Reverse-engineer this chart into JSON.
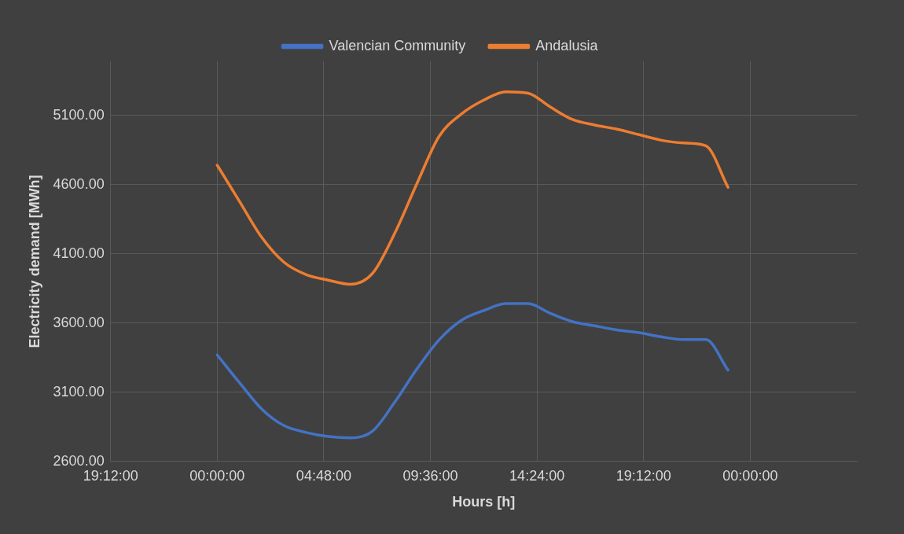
{
  "chart_data": {
    "type": "line",
    "xlabel": "Hours [h]",
    "ylabel": "Electricity demand [MWh]",
    "x": [
      "2000-01-01T00:00",
      "2000-01-01T01:00",
      "2000-01-01T02:00",
      "2000-01-01T03:00",
      "2000-01-01T04:00",
      "2000-01-01T05:00",
      "2000-01-01T06:00",
      "2000-01-01T07:00",
      "2000-01-01T08:00",
      "2000-01-01T09:00",
      "2000-01-01T10:00",
      "2000-01-01T11:00",
      "2000-01-01T12:00",
      "2000-01-01T13:00",
      "2000-01-01T14:00",
      "2000-01-01T15:00",
      "2000-01-01T16:00",
      "2000-01-01T17:00",
      "2000-01-01T18:00",
      "2000-01-01T19:00",
      "2000-01-01T20:00",
      "2000-01-01T21:00",
      "2000-01-01T22:00",
      "2000-01-01T23:00"
    ],
    "series": [
      {
        "name": "Valencian Community",
        "color": "#4472c4",
        "values": [
          3370,
          3170,
          2980,
          2860,
          2810,
          2780,
          2770,
          2820,
          3030,
          3270,
          3480,
          3620,
          3690,
          3740,
          3740,
          3670,
          3610,
          3580,
          3550,
          3530,
          3500,
          3480,
          3480,
          3260
        ]
      },
      {
        "name": "Andalusia",
        "color": "#ed7d31",
        "values": [
          4740,
          4480,
          4220,
          4040,
          3950,
          3910,
          3880,
          3960,
          4250,
          4610,
          4950,
          5110,
          5210,
          5270,
          5260,
          5160,
          5070,
          5030,
          5000,
          4960,
          4920,
          4900,
          4880,
          4580
        ]
      }
    ],
    "xlim": [
      "1999-12-31T19:12",
      "2000-01-02T04:48"
    ],
    "xticks": [
      {
        "value": "1999-12-31T19:12",
        "label": "19:12:00"
      },
      {
        "value": "2000-01-01T00:00",
        "label": "00:00:00"
      },
      {
        "value": "2000-01-01T04:48",
        "label": "04:48:00"
      },
      {
        "value": "2000-01-01T09:36",
        "label": "09:36:00"
      },
      {
        "value": "2000-01-01T14:24",
        "label": "14:24:00"
      },
      {
        "value": "2000-01-01T19:12",
        "label": "19:12:00"
      },
      {
        "value": "2000-01-02T00:00",
        "label": "00:00:00"
      }
    ],
    "ylim": [
      2600,
      5490
    ],
    "yticks": [
      {
        "value": 2600,
        "label": "2600.00"
      },
      {
        "value": 3100,
        "label": "3100.00"
      },
      {
        "value": 3600,
        "label": "3600.00"
      },
      {
        "value": 4100,
        "label": "4100.00"
      },
      {
        "value": 4600,
        "label": "4600.00"
      },
      {
        "value": 5100,
        "label": "5100.00"
      }
    ],
    "grid": true,
    "legend": "top",
    "marker": "none",
    "line_style": "solid"
  }
}
